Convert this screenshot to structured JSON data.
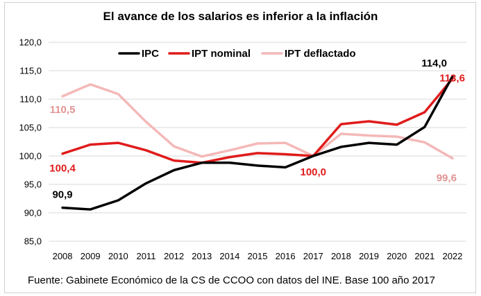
{
  "chart_data": {
    "type": "line",
    "title": "El avance de los salarios es inferior a la inflación",
    "categories": [
      "2008",
      "2009",
      "2010",
      "2011",
      "2012",
      "2013",
      "2014",
      "2015",
      "2016",
      "2017",
      "2018",
      "2019",
      "2020",
      "2021",
      "2022"
    ],
    "ylim": [
      85,
      120
    ],
    "yticks": [
      85,
      90,
      95,
      100,
      105,
      110,
      115,
      120
    ],
    "ytick_labels": [
      "85,0",
      "90,0",
      "95,0",
      "100,0",
      "105,0",
      "110,0",
      "115,0",
      "120,0"
    ],
    "grid": true,
    "legend_position": "top",
    "series": [
      {
        "name": "IPC",
        "color": "#000000",
        "values": [
          90.9,
          90.6,
          92.2,
          95.2,
          97.5,
          98.8,
          98.8,
          98.3,
          98.0,
          100.0,
          101.6,
          102.3,
          102.0,
          105.1,
          114.0
        ]
      },
      {
        "name": "IPT nominal",
        "color": "#e01b1b",
        "values": [
          100.4,
          102.0,
          102.3,
          101.0,
          99.2,
          98.8,
          99.8,
          100.5,
          100.3,
          100.0,
          105.6,
          106.1,
          105.5,
          107.7,
          113.6
        ]
      },
      {
        "name": "IPT deflactado",
        "color": "#f4b8b8",
        "values": [
          110.5,
          112.6,
          110.9,
          106.0,
          101.7,
          99.9,
          101.0,
          102.2,
          102.3,
          100.0,
          103.9,
          103.6,
          103.4,
          102.4,
          99.6
        ]
      }
    ],
    "data_labels": [
      {
        "text": "90,9",
        "series": "IPC",
        "index": 0,
        "color": "#000000"
      },
      {
        "text": "114,0",
        "series": "IPC",
        "index": 14,
        "color": "#000000"
      },
      {
        "text": "100,4",
        "series": "IPT nominal",
        "index": 0,
        "color": "#e01b1b"
      },
      {
        "text": "113,6",
        "series": "IPT nominal",
        "index": 14,
        "color": "#e01b1b"
      },
      {
        "text": "100,0",
        "series": "IPT nominal",
        "index": 9,
        "color": "#e01b1b"
      },
      {
        "text": "110,5",
        "series": "IPT deflactado",
        "index": 0,
        "color": "#e29393"
      },
      {
        "text": "99,6",
        "series": "IPT deflactado",
        "index": 14,
        "color": "#e29393"
      }
    ],
    "source": "Fuente: Gabinete Económico de la CS de CCOO con datos del INE. Base 100 año 2017"
  }
}
